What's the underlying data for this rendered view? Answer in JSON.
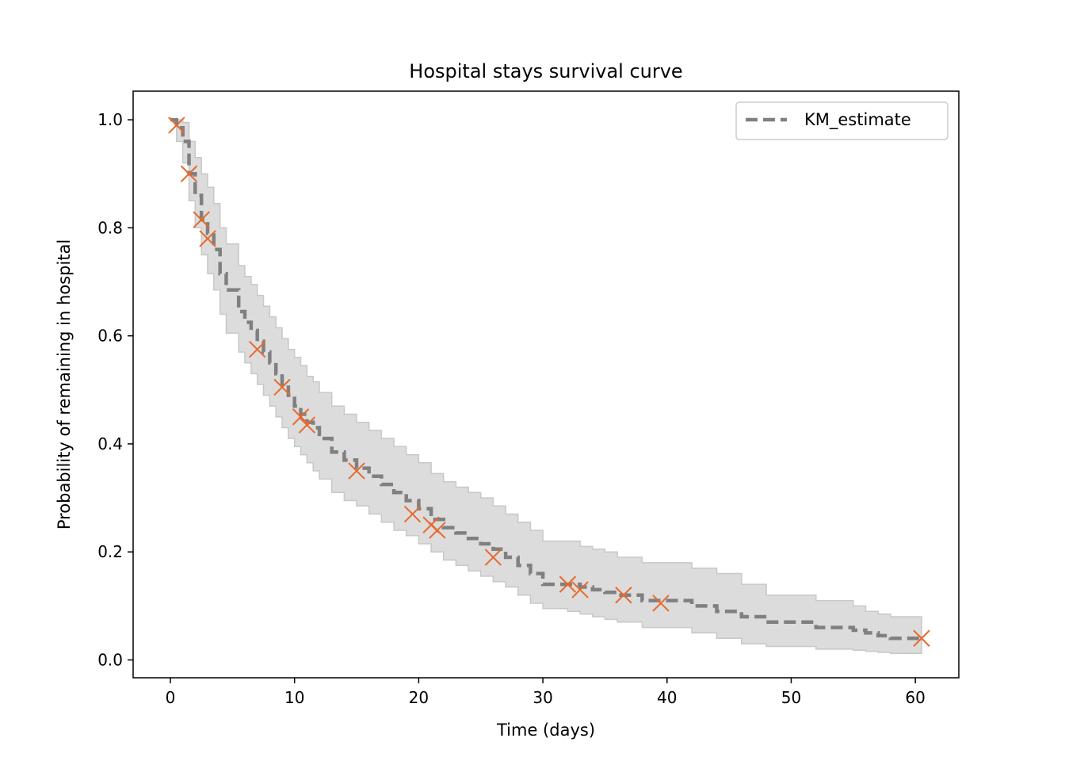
{
  "chart_data": {
    "type": "line",
    "title": "Hospital stays survival curve",
    "xlabel": "Time (days)",
    "ylabel": "Probability of remaining in hospital",
    "xlim": [
      -3,
      63.5
    ],
    "ylim": [
      -0.033,
      1.053
    ],
    "xticks": [
      0,
      10,
      20,
      30,
      40,
      50,
      60
    ],
    "yticks": [
      0.0,
      0.2,
      0.4,
      0.6,
      0.8,
      1.0
    ],
    "ytick_labels": [
      "0.0",
      "0.2",
      "0.4",
      "0.6",
      "0.8",
      "1.0"
    ],
    "grid": false,
    "legend": {
      "position": "top-right",
      "entries": [
        "KM_estimate"
      ]
    },
    "colors": {
      "estimate": "#808080",
      "band": "#dcdcdc",
      "band_edge": "#c8c8c8",
      "censor": "#e8692d"
    },
    "series": [
      {
        "name": "KM_estimate",
        "style": "dashed-step",
        "x": [
          0,
          0.5,
          1,
          1.5,
          2,
          2.5,
          3,
          3.5,
          4,
          4.5,
          5.5,
          6,
          6.5,
          7,
          7.5,
          8,
          8.5,
          9,
          9.5,
          10,
          10.5,
          11,
          11.5,
          12,
          13,
          14,
          15,
          16,
          17,
          18,
          19,
          20,
          21,
          22,
          23,
          24,
          25,
          26,
          27,
          28,
          29,
          30,
          32,
          33,
          34,
          35,
          36,
          38,
          42,
          44,
          46,
          48,
          52,
          55,
          56,
          57,
          58,
          60.5
        ],
        "y": [
          1.0,
          0.985,
          0.96,
          0.9,
          0.86,
          0.815,
          0.79,
          0.76,
          0.715,
          0.685,
          0.645,
          0.625,
          0.61,
          0.59,
          0.57,
          0.55,
          0.53,
          0.51,
          0.49,
          0.47,
          0.455,
          0.44,
          0.43,
          0.41,
          0.385,
          0.37,
          0.355,
          0.34,
          0.325,
          0.31,
          0.295,
          0.28,
          0.26,
          0.245,
          0.235,
          0.225,
          0.215,
          0.205,
          0.19,
          0.175,
          0.16,
          0.14,
          0.14,
          0.135,
          0.13,
          0.125,
          0.12,
          0.11,
          0.1,
          0.09,
          0.08,
          0.07,
          0.06,
          0.055,
          0.05,
          0.045,
          0.04,
          0.04
        ],
        "ci_upper": [
          1.0,
          1.0,
          0.995,
          0.96,
          0.93,
          0.9,
          0.875,
          0.845,
          0.8,
          0.77,
          0.73,
          0.71,
          0.695,
          0.675,
          0.655,
          0.635,
          0.615,
          0.595,
          0.575,
          0.56,
          0.545,
          0.525,
          0.515,
          0.495,
          0.47,
          0.455,
          0.44,
          0.425,
          0.41,
          0.395,
          0.38,
          0.365,
          0.345,
          0.33,
          0.32,
          0.31,
          0.3,
          0.285,
          0.27,
          0.255,
          0.24,
          0.22,
          0.22,
          0.21,
          0.205,
          0.2,
          0.19,
          0.18,
          0.17,
          0.16,
          0.14,
          0.12,
          0.11,
          0.1,
          0.09,
          0.085,
          0.08,
          0.08
        ],
        "ci_lower": [
          1.0,
          0.96,
          0.92,
          0.85,
          0.8,
          0.75,
          0.715,
          0.685,
          0.64,
          0.605,
          0.57,
          0.55,
          0.53,
          0.51,
          0.49,
          0.47,
          0.45,
          0.43,
          0.41,
          0.395,
          0.38,
          0.365,
          0.35,
          0.335,
          0.31,
          0.295,
          0.285,
          0.27,
          0.255,
          0.24,
          0.23,
          0.215,
          0.2,
          0.185,
          0.175,
          0.165,
          0.155,
          0.145,
          0.135,
          0.12,
          0.105,
          0.095,
          0.09,
          0.085,
          0.08,
          0.075,
          0.07,
          0.06,
          0.05,
          0.04,
          0.03,
          0.025,
          0.02,
          0.018,
          0.016,
          0.014,
          0.012,
          0.012
        ]
      },
      {
        "name": "",
        "style": "x-markers",
        "x": [
          0.5,
          1.5,
          2.5,
          3,
          7,
          9,
          10.5,
          11,
          15,
          19.5,
          21,
          21.5,
          26,
          32,
          33,
          36.5,
          39.5,
          60.5
        ],
        "y": [
          0.99,
          0.9,
          0.815,
          0.78,
          0.575,
          0.505,
          0.45,
          0.435,
          0.35,
          0.27,
          0.25,
          0.24,
          0.19,
          0.14,
          0.13,
          0.12,
          0.105,
          0.04
        ]
      }
    ]
  }
}
